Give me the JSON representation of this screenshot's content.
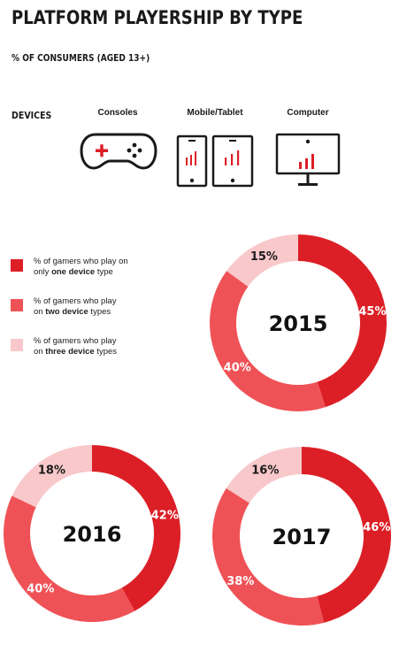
{
  "header": {
    "title": "PLATFORM PLAYERSHIP BY TYPE",
    "subtitle": "% OF CONSUMERS (AGED 13+)"
  },
  "devices": {
    "label": "DEVICES",
    "items": [
      {
        "name": "Consoles",
        "icon": "gamepad-icon"
      },
      {
        "name": "Mobile/Tablet",
        "icon": "mobile-tablet-icon"
      },
      {
        "name": "Computer",
        "icon": "computer-monitor-icon"
      }
    ]
  },
  "colors": {
    "one_device": "#dc1f26",
    "two_devices": "#ef5256",
    "three_devices": "#f8c8ca",
    "icon_bar": "#dc1f26"
  },
  "legend": [
    {
      "pre": "% of gamers who play on",
      "line2_pre": "only ",
      "bold": "one device",
      "post": " type"
    },
    {
      "pre": "% of gamers who play",
      "line2_pre": "on ",
      "bold": "two device",
      "post": " types"
    },
    {
      "pre": "% of gamers who play",
      "line2_pre": "on ",
      "bold": "three device",
      "post": " types"
    }
  ],
  "chart_data": [
    {
      "type": "pie",
      "title": "2015",
      "categories": [
        "one device",
        "two device",
        "three device"
      ],
      "values": [
        45,
        40,
        15
      ],
      "labels": [
        "45%",
        "40%",
        "15%"
      ]
    },
    {
      "type": "pie",
      "title": "2016",
      "categories": [
        "one device",
        "two device",
        "three device"
      ],
      "values": [
        42,
        40,
        18
      ],
      "labels": [
        "42%",
        "40%",
        "18%"
      ]
    },
    {
      "type": "pie",
      "title": "2017",
      "categories": [
        "one device",
        "two device",
        "three device"
      ],
      "values": [
        46,
        38,
        16
      ],
      "labels": [
        "46%",
        "38%",
        "16%"
      ]
    }
  ]
}
